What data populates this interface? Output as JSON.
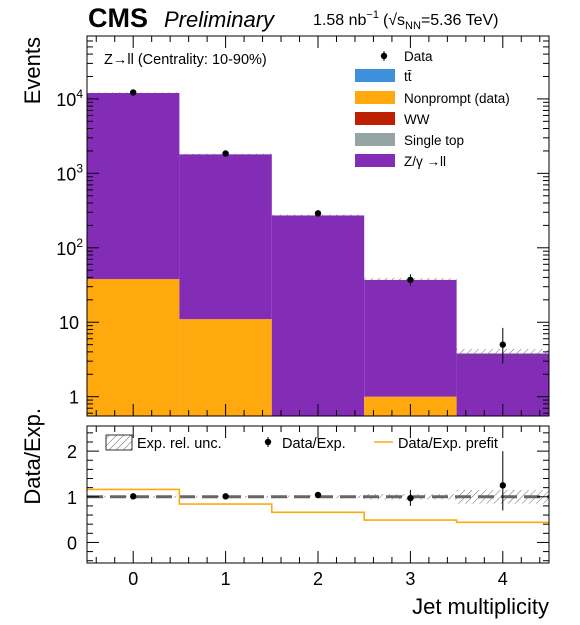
{
  "header": {
    "experiment": "CMS",
    "status": "Preliminary",
    "lumi_value": "1.58 nb",
    "lumi_exp": "−1",
    "energy_prefix": "(√s",
    "energy_sub": "NN",
    "energy_suffix": "=5.36 TeV)"
  },
  "chart_data": [
    {
      "type": "bar",
      "subtype": "stacked-histogram",
      "scale": "log",
      "ylabel": "Events",
      "xlabel": "",
      "categories": [
        "0",
        "1",
        "2",
        "3",
        "4"
      ],
      "x_edges": [
        -0.5,
        0.5,
        1.5,
        2.5,
        3.5,
        4.5
      ],
      "ylim": [
        0.55,
        70000
      ],
      "y_ticks": [
        {
          "value": 1,
          "label": "1"
        },
        {
          "value": 10,
          "label": "10"
        },
        {
          "value": 100,
          "label": "10",
          "sup": "2"
        },
        {
          "value": 1000,
          "label": "10",
          "sup": "3"
        },
        {
          "value": 10000,
          "label": "10",
          "sup": "4"
        }
      ],
      "annotation": "Z→ll (Centrality: 10-90%)",
      "series": [
        {
          "name": "Nonprompt (data)",
          "color": "#ffa90e",
          "values": [
            38,
            11,
            0,
            1.0,
            0
          ]
        },
        {
          "name": "Z/γ →ll",
          "color": "#832db6",
          "values": [
            11962,
            1789,
            272,
            36,
            3.8
          ]
        }
      ],
      "legend_only": [
        {
          "name": "tt̄",
          "color": "#3f90da"
        },
        {
          "name": "WW",
          "color": "#bd1f01"
        },
        {
          "name": "Single top",
          "color": "#94a4a2"
        }
      ],
      "uncertainty": {
        "label": "Exp. rel. unc.",
        "rel": [
          0.02,
          0.02,
          0.03,
          0.06,
          0.15
        ]
      },
      "data_points": {
        "name": "Data",
        "values": [
          12200,
          1850,
          290,
          37,
          5
        ],
        "err_low": [
          110,
          43,
          17,
          6,
          2.2
        ],
        "err_high": [
          110,
          43,
          17,
          7,
          3.4
        ]
      }
    },
    {
      "type": "line",
      "subtype": "ratio",
      "ylabel": "Data/Exp.",
      "xlabel": "Jet multiplicity",
      "categories": [
        "0",
        "1",
        "2",
        "3",
        "4"
      ],
      "ylim": [
        -0.45,
        2.55
      ],
      "y_ticks": [
        0,
        1,
        2
      ],
      "x_ticks": [
        "0",
        "1",
        "2",
        "3",
        "4"
      ],
      "legend": [
        {
          "name": "Exp. rel. unc."
        },
        {
          "name": "Data/Exp."
        },
        {
          "name": "Data/Exp. prefit",
          "color": "#ffa90e"
        }
      ],
      "ratio": {
        "values": [
          1.01,
          1.01,
          1.04,
          0.97,
          1.25
        ],
        "err_low": [
          0.01,
          0.02,
          0.05,
          0.17,
          0.55
        ],
        "err_high": [
          0.01,
          0.02,
          0.05,
          0.18,
          0.75
        ]
      },
      "prefit": {
        "values": [
          1.16,
          0.84,
          0.66,
          0.49,
          0.44
        ]
      },
      "uncertainty_band": {
        "rel": [
          0.02,
          0.02,
          0.03,
          0.06,
          0.15
        ]
      },
      "reference_line": 1
    }
  ]
}
